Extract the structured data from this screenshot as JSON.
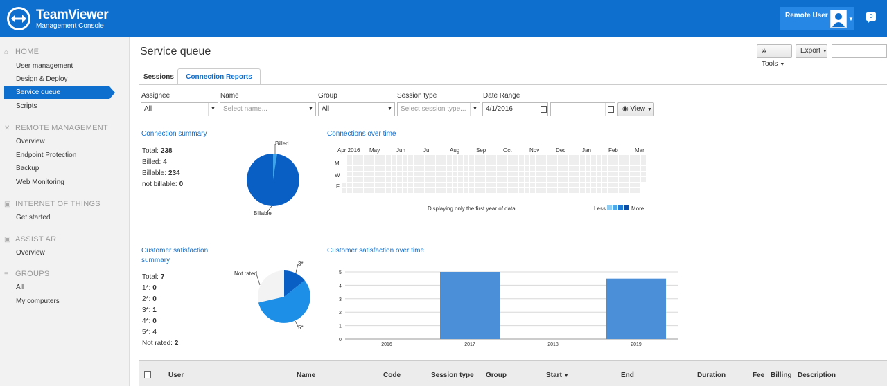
{
  "header": {
    "brand_title": "TeamViewer",
    "brand_subtitle": "Management Console",
    "user_name": "Remote User",
    "message_count": "0"
  },
  "sidebar": {
    "home_title": "HOME",
    "home_items": [
      "User management",
      "Design & Deploy",
      "Service queue",
      "Scripts"
    ],
    "remote_title": "REMOTE MANAGEMENT",
    "remote_items": [
      "Overview",
      "Endpoint Protection",
      "Backup",
      "Web Monitoring"
    ],
    "iot_title": "INTERNET OF THINGS",
    "iot_items": [
      "Get started"
    ],
    "ar_title": "ASSIST AR",
    "ar_items": [
      "Overview"
    ],
    "groups_title": "GROUPS",
    "groups_items": [
      "All",
      "My computers"
    ]
  },
  "page": {
    "title": "Service queue",
    "tools_label": "Tools",
    "export_label": "Export",
    "tabs": [
      "Sessions",
      "Connection Reports"
    ]
  },
  "filters": {
    "assignee_label": "Assignee",
    "assignee_value": "All",
    "name_label": "Name",
    "name_placeholder": "Select name...",
    "group_label": "Group",
    "group_value": "All",
    "session_type_label": "Session type",
    "session_type_placeholder": "Select session type...",
    "date_range_label": "Date Range",
    "date_from": "4/1/2016",
    "date_to": "",
    "view_label": "View"
  },
  "connection_summary": {
    "title": "Connection summary",
    "total_label": "Total:",
    "total": "238",
    "billed_label": "Billed:",
    "billed": "4",
    "billable_label": "Billable:",
    "billable": "234",
    "not_billable_label": "not billable:",
    "not_billable": "0",
    "pie_label_billed": "Billed",
    "pie_label_billable": "Billable"
  },
  "connections_over_time": {
    "title": "Connections over time",
    "months": [
      "Apr 2016",
      "May",
      "Jun",
      "Jul",
      "Aug",
      "Sep",
      "Oct",
      "Nov",
      "Dec",
      "Jan",
      "Feb",
      "Mar"
    ],
    "day_labels": [
      "M",
      "W",
      "F"
    ],
    "note": "Displaying only the first year of data",
    "legend_less": "Less",
    "legend_more": "More"
  },
  "satisfaction_summary": {
    "title_line1": "Customer satisfaction",
    "title_line2": "summary",
    "rows": [
      {
        "label": "Total:",
        "value": "7"
      },
      {
        "label": "1*:",
        "value": "0"
      },
      {
        "label": "2*:",
        "value": "0"
      },
      {
        "label": "3*:",
        "value": "1"
      },
      {
        "label": "4*:",
        "value": "0"
      },
      {
        "label": "5*:",
        "value": "4"
      },
      {
        "label": "Not rated:",
        "value": "2"
      }
    ],
    "pie_label_not_rated": "Not rated",
    "pie_label_3": "3*",
    "pie_label_5": "5*"
  },
  "chart_data": {
    "type": "bar",
    "title": "Customer satisfaction over time",
    "categories": [
      "2016",
      "2017",
      "2018",
      "2019"
    ],
    "values": [
      0,
      5,
      0,
      4.5
    ],
    "ylim": [
      0,
      5
    ],
    "yticks": [
      0,
      1,
      2,
      3,
      4,
      5
    ],
    "grid": true,
    "bar_color": "#4a8fd8"
  },
  "table": {
    "columns": [
      "User",
      "Name",
      "Code",
      "Session type",
      "Group",
      "Start",
      "End",
      "Duration",
      "Fee",
      "Billing",
      "Description"
    ],
    "sort_indicator": "▼"
  },
  "colors": {
    "brand": "#0e6fcf",
    "pie_dark": "#0a5fc4",
    "pie_mid": "#1e8fe6",
    "pie_light": "#f3f3f3"
  }
}
